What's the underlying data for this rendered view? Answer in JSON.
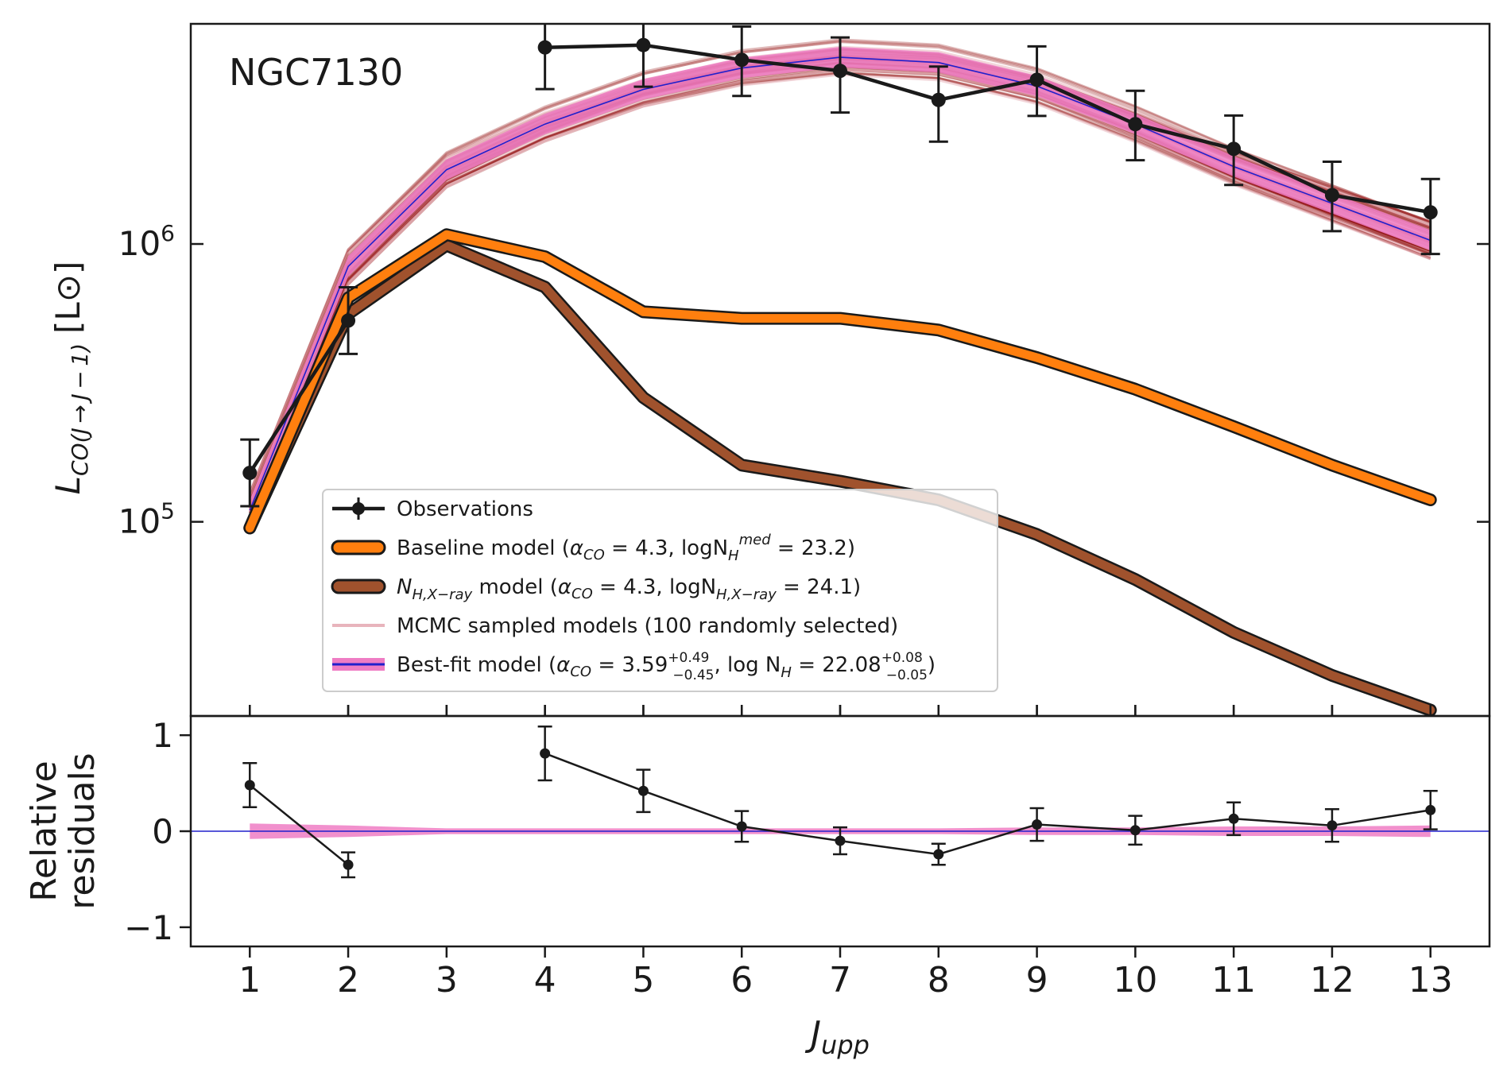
{
  "chart_data": [
    {
      "type": "line",
      "panel": "top",
      "title": "",
      "annotation": "NGC7130",
      "ylabel_main": "L",
      "ylabel_sub": "CO(J → J − 1)",
      "ylabel_unit": "[L⊙]",
      "yscale": "log",
      "xlim": [
        0.4,
        13.6
      ],
      "ylim": [
        20000,
        6200000
      ],
      "yticks": [
        {
          "value": 100000,
          "base": "10",
          "exp": "5"
        },
        {
          "value": 1000000,
          "base": "10",
          "exp": "6"
        }
      ],
      "x": [
        1,
        2,
        3,
        4,
        5,
        6,
        7,
        8,
        9,
        10,
        11,
        12,
        13
      ],
      "series": [
        {
          "name": "Observations",
          "color": "#1a1a1a",
          "values": [
            150000,
            530000,
            null,
            5100000,
            5200000,
            4600000,
            4200000,
            3300000,
            3900000,
            2700000,
            2200000,
            1500000,
            1300000
          ],
          "err_lo": [
            0.12,
            0.12,
            null,
            0.15,
            0.15,
            0.13,
            0.15,
            0.15,
            0.13,
            0.13,
            0.13,
            0.13,
            0.15
          ],
          "err_hi": [
            0.12,
            0.12,
            null,
            0.12,
            0.12,
            0.12,
            0.12,
            0.12,
            0.12,
            0.12,
            0.12,
            0.12,
            0.12
          ]
        },
        {
          "name": "Baseline model",
          "color": "#ff7f0e",
          "values": [
            95000,
            640000,
            1080000,
            900000,
            570000,
            540000,
            540000,
            490000,
            390000,
            300000,
            220000,
            160000,
            120000
          ]
        },
        {
          "name": "NH_Xray model",
          "color": "#a0522d",
          "values": [
            95000,
            560000,
            990000,
            700000,
            280000,
            160000,
            140000,
            120000,
            90000,
            62000,
            40000,
            28000,
            21000
          ]
        },
        {
          "name": "Best-fit model",
          "color": "#2020cc",
          "band_color": "#ef7cc4",
          "values": [
            110000,
            830000,
            1850000,
            2700000,
            3600000,
            4300000,
            4700000,
            4500000,
            3700000,
            2700000,
            1900000,
            1400000,
            1030000
          ]
        },
        {
          "name": "MCMC sampled models",
          "color": "#8b0000",
          "light_color": "#e8b4bc",
          "spread_lo": 0.07,
          "spread_hi": 0.07
        }
      ],
      "legend": {
        "placement": "lower-center",
        "entries": [
          {
            "key": "obs",
            "text": "Observations"
          },
          {
            "key": "base",
            "prefix": "Baseline model (",
            "alpha": "α",
            "alpha_sub": "CO",
            "mid": " = 4.3, logN",
            "nh_sub": "H",
            "nh_sup": "med",
            "suffix": " = 23.2)"
          },
          {
            "key": "xray",
            "n": "N",
            "n_sub": "H,X−ray",
            "mid": " model (",
            "alpha": "α",
            "alpha_sub": "CO",
            "mid2": " = 4.3, logN",
            "nh_sub": "H,X−ray",
            "suffix": " = 24.1)"
          },
          {
            "key": "mcmc",
            "text": "MCMC sampled models (100 randomly selected)"
          },
          {
            "key": "best",
            "prefix": "Best-fit model (",
            "alpha": "α",
            "alpha_sub": "CO",
            "val1": " = 3.59",
            "val1_sup": "+0.49",
            "val1_sub": "−0.45",
            "mid": ", log N",
            "nh_sub": "H",
            "val2": " = 22.08",
            "val2_sup": "+0.08",
            "val2_sub": "−0.05",
            "suffix": ")"
          }
        ]
      }
    },
    {
      "type": "line",
      "panel": "bottom",
      "ylabel_line1": "Relative",
      "ylabel_line2": "residuals",
      "xlabel_main": "J",
      "xlabel_sub": "upp",
      "xlim": [
        0.4,
        13.6
      ],
      "ylim": [
        -1.2,
        1.2
      ],
      "yticks": [
        {
          "value": 1,
          "label": "1"
        },
        {
          "value": 0,
          "label": "0"
        },
        {
          "value": -1,
          "label": "−1"
        }
      ],
      "xticks": [
        "1",
        "2",
        "3",
        "4",
        "5",
        "6",
        "7",
        "8",
        "9",
        "10",
        "11",
        "12",
        "13"
      ],
      "x": [
        1,
        2,
        3,
        4,
        5,
        6,
        7,
        8,
        9,
        10,
        11,
        12,
        13
      ],
      "residuals": [
        0.48,
        -0.35,
        null,
        0.81,
        0.42,
        0.05,
        -0.1,
        -0.24,
        0.07,
        0.01,
        0.13,
        0.06,
        0.22
      ],
      "res_err": [
        0.23,
        0.13,
        null,
        0.28,
        0.22,
        0.16,
        0.14,
        0.11,
        0.17,
        0.15,
        0.17,
        0.17,
        0.2
      ],
      "band_half_width": [
        0.08,
        0.06,
        0.03,
        0.03,
        0.03,
        0.03,
        0.03,
        0.03,
        0.04,
        0.04,
        0.05,
        0.05,
        0.06
      ],
      "zero_line_color": "#2020cc",
      "band_color": "#ef7cc4"
    }
  ]
}
